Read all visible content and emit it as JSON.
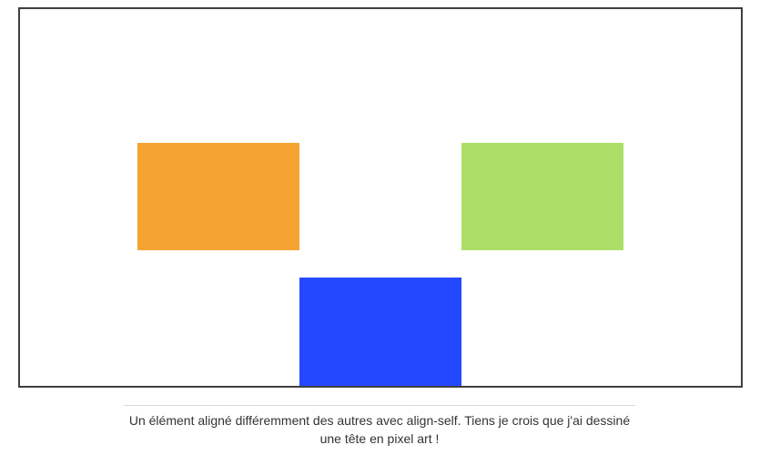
{
  "demo": {
    "boxes": [
      {
        "name": "orange-box",
        "color": "#f5a431"
      },
      {
        "name": "green-box",
        "color": "#addf68"
      },
      {
        "name": "blue-box",
        "color": "#2448ff"
      }
    ]
  },
  "caption": {
    "text": "Un élément aligné différemment des autres avec align-self. Tiens je crois que j'ai dessiné une tête en pixel art !"
  }
}
